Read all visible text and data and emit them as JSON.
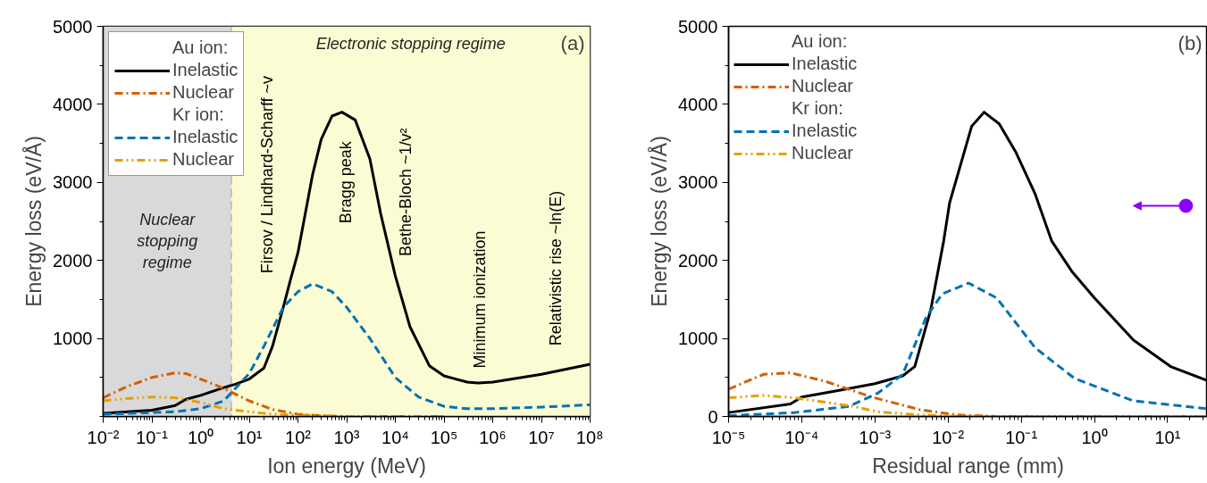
{
  "chart_data": [
    {
      "type": "line",
      "xlabel": "Ion energy (MeV)",
      "ylabel": "Energy loss (eV/Å)",
      "log": "x",
      "xlim": [
        0.01,
        100000000
      ],
      "ylim": [
        0,
        5000
      ],
      "xticks": [
        {
          "value": 0.01,
          "label": "10⁻²"
        },
        {
          "value": 0.1,
          "label": "10⁻¹"
        },
        {
          "value": 1,
          "label": "10⁰"
        },
        {
          "value": 10,
          "label": "10¹"
        },
        {
          "value": 100,
          "label": "10²"
        },
        {
          "value": 1000,
          "label": "10³"
        },
        {
          "value": 10000,
          "label": "10⁴"
        },
        {
          "value": 100000,
          "label": "10⁵"
        },
        {
          "value": 1000000,
          "label": "10⁶"
        },
        {
          "value": 10000000,
          "label": "10⁷"
        },
        {
          "value": 100000000,
          "label": "10⁸"
        }
      ],
      "yticks": [
        1000,
        2000,
        3000,
        4000,
        5000
      ],
      "grid": false,
      "legend": "top left",
      "legend_title": [
        "Au ion:",
        "Kr ion:"
      ],
      "series": [
        {
          "name": "Inelastic",
          "color": "#000000",
          "line_style": "solid",
          "x": [
            0.01,
            0.1,
            0.3,
            0.5,
            1,
            3,
            5,
            10,
            20,
            30,
            50,
            70,
            100,
            200,
            300,
            500,
            800,
            1500,
            3000,
            5000,
            10000,
            20000,
            50000,
            100000,
            300000,
            500000,
            1000000,
            10000000,
            100000000
          ],
          "values": [
            40,
            80,
            140,
            220,
            270,
            370,
            410,
            480,
            620,
            900,
            1400,
            1750,
            2100,
            3100,
            3550,
            3850,
            3900,
            3800,
            3300,
            2600,
            1800,
            1150,
            650,
            520,
            440,
            430,
            440,
            540,
            670
          ]
        },
        {
          "name": "Nuclear",
          "color": "#d55e00",
          "line_style": "dashdot",
          "x": [
            0.01,
            0.03,
            0.1,
            0.3,
            0.5,
            1,
            3,
            10,
            30,
            100,
            300,
            1000,
            10000,
            100000
          ],
          "values": [
            240,
            380,
            500,
            560,
            550,
            480,
            360,
            200,
            90,
            30,
            10,
            0,
            0,
            0
          ]
        },
        {
          "name": "Inelastic",
          "color": "#0072b2",
          "line_style": "dashed",
          "x": [
            0.01,
            0.1,
            0.3,
            1,
            3,
            5,
            10,
            20,
            50,
            100,
            200,
            500,
            1000,
            3000,
            10000,
            30000,
            100000,
            300000,
            1000000,
            10000000,
            100000000
          ],
          "values": [
            30,
            50,
            60,
            100,
            200,
            350,
            550,
            900,
            1400,
            1600,
            1700,
            1600,
            1400,
            1000,
            500,
            250,
            130,
            100,
            100,
            120,
            150
          ]
        },
        {
          "name": "Nuclear",
          "color": "#e69f00",
          "line_style": "dashdotdot",
          "x": [
            0.01,
            0.03,
            0.1,
            0.3,
            1,
            3,
            10,
            30,
            100,
            1000,
            10000,
            100000
          ],
          "values": [
            200,
            230,
            250,
            240,
            180,
            100,
            60,
            30,
            20,
            0,
            0,
            0
          ]
        }
      ],
      "bands": [
        {
          "axis": "x",
          "from": 0.01,
          "to": 4.3,
          "label": "Nuclear stopping regime",
          "color": "#d9d9d9"
        },
        {
          "axis": "x",
          "from": 4.3,
          "to": 100000000,
          "label": "Electronic stopping regime",
          "color": "#fcfcd4"
        }
      ],
      "ref_lines": [
        {
          "axis": "x",
          "value": 4.3,
          "color": "#9e9e9e",
          "line_style": "dashed"
        }
      ],
      "annotations": [
        "(a)",
        "Firsov / Lindhard-Scharff ~v",
        "Bragg peak",
        "Bethe-Bloch ~1/v²",
        "Minimum ionization",
        "Relativistic rise ~ln(E)"
      ]
    },
    {
      "type": "line",
      "xlabel": "Residual range (mm)",
      "ylabel": "Energy loss (eV/Å)",
      "log": "x",
      "xlim": [
        1e-05,
        35
      ],
      "ylim": [
        0,
        5000
      ],
      "xticks": [
        {
          "value": 1e-05,
          "label": "10⁻⁵"
        },
        {
          "value": 0.0001,
          "label": "10⁻⁴"
        },
        {
          "value": 0.001,
          "label": "10⁻³"
        },
        {
          "value": 0.01,
          "label": "10⁻²"
        },
        {
          "value": 0.1,
          "label": "10⁻¹"
        },
        {
          "value": 1,
          "label": "10⁰"
        },
        {
          "value": 10,
          "label": "10¹"
        }
      ],
      "yticks": [
        0,
        1000,
        2000,
        3000,
        4000,
        5000
      ],
      "grid": false,
      "legend": "top left",
      "legend_title": [
        "Au ion:",
        "Kr ion:"
      ],
      "series": [
        {
          "name": "Inelastic",
          "color": "#000000",
          "line_style": "solid",
          "x": [
            1e-05,
            7e-05,
            0.0001,
            0.0003,
            0.001,
            0.0024,
            0.0035,
            0.0058,
            0.0087,
            0.0105,
            0.021,
            0.031,
            0.05,
            0.085,
            0.155,
            0.26,
            0.5,
            1,
            3.4,
            11,
            35
          ],
          "values": [
            50,
            160,
            250,
            330,
            420,
            520,
            640,
            1370,
            2250,
            2740,
            3720,
            3900,
            3750,
            3380,
            2850,
            2250,
            1850,
            1520,
            980,
            640,
            460
          ]
        },
        {
          "name": "Nuclear",
          "color": "#d55e00",
          "line_style": "dashdot",
          "x": [
            1e-05,
            3e-05,
            7e-05,
            0.00021,
            0.0009,
            0.004,
            0.013,
            0.05,
            35
          ],
          "values": [
            350,
            540,
            560,
            450,
            250,
            90,
            20,
            0,
            0
          ]
        },
        {
          "name": "Inelastic",
          "color": "#0072b2",
          "line_style": "dashed",
          "x": [
            1e-05,
            8e-05,
            0.00044,
            0.0011,
            0.0024,
            0.005,
            0.0083,
            0.019,
            0.046,
            0.155,
            0.53,
            3.4,
            35
          ],
          "values": [
            10,
            50,
            130,
            300,
            540,
            1270,
            1570,
            1710,
            1520,
            880,
            490,
            200,
            100
          ]
        },
        {
          "name": "Nuclear",
          "color": "#e69f00",
          "line_style": "dashdotdot",
          "x": [
            1e-05,
            3e-05,
            8e-05,
            0.0005,
            0.0011,
            0.004,
            0.017,
            35
          ],
          "values": [
            240,
            270,
            240,
            130,
            60,
            20,
            0,
            0
          ]
        }
      ],
      "annotations": [
        "(b)"
      ]
    }
  ]
}
